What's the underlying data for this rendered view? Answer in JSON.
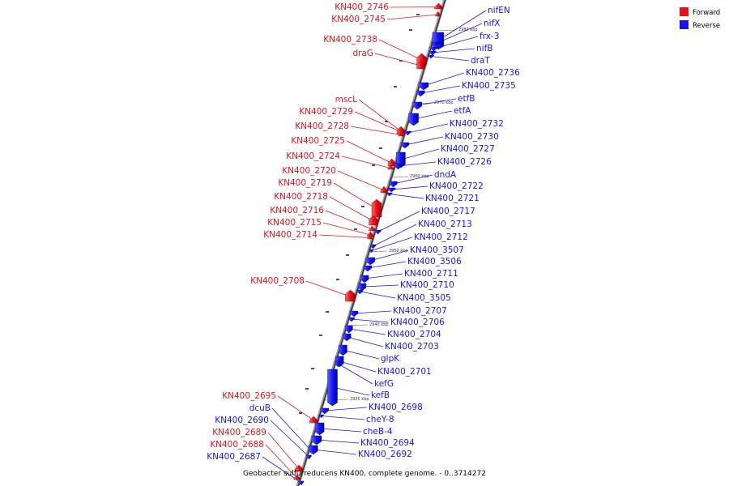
{
  "caption": "Geobacter sulfurreducens KN400, complete genome. - 0..3714272",
  "legend": {
    "forward": {
      "label": "Forward",
      "color": "#e8121c"
    },
    "reverse": {
      "label": "Reverse",
      "color": "#1515f0"
    }
  },
  "ticks": [
    "2980 kbp",
    "2970 kbp",
    "2960 kbp",
    "2950 kbp",
    "2940 kbp",
    "2930 kbp"
  ],
  "genes": [
    {
      "name": "KN400_2746",
      "strand": "forward"
    },
    {
      "name": "KN400_2745",
      "strand": "forward"
    },
    {
      "name": "KN400_2738",
      "strand": "forward"
    },
    {
      "name": "draG",
      "strand": "forward"
    },
    {
      "name": "mscL",
      "strand": "forward"
    },
    {
      "name": "KN400_2729",
      "strand": "forward"
    },
    {
      "name": "KN400_2728",
      "strand": "forward"
    },
    {
      "name": "KN400_2725",
      "strand": "forward"
    },
    {
      "name": "KN400_2724",
      "strand": "forward"
    },
    {
      "name": "KN400_2720",
      "strand": "forward"
    },
    {
      "name": "KN400_2719",
      "strand": "forward"
    },
    {
      "name": "KN400_2718",
      "strand": "forward"
    },
    {
      "name": "KN400_2716",
      "strand": "forward"
    },
    {
      "name": "KN400_2715",
      "strand": "forward"
    },
    {
      "name": "KN400_2714",
      "strand": "forward"
    },
    {
      "name": "KN400_2708",
      "strand": "forward"
    },
    {
      "name": "KN400_2695",
      "strand": "forward"
    },
    {
      "name": "dcuB",
      "strand": "reverse"
    },
    {
      "name": "KN400_2690",
      "strand": "reverse"
    },
    {
      "name": "KN400_2689",
      "strand": "forward"
    },
    {
      "name": "KN400_2688",
      "strand": "forward"
    },
    {
      "name": "KN400_2687",
      "strand": "reverse"
    },
    {
      "name": "nifEN",
      "strand": "reverse"
    },
    {
      "name": "nifX",
      "strand": "reverse"
    },
    {
      "name": "frx-3",
      "strand": "reverse"
    },
    {
      "name": "nifB",
      "strand": "reverse"
    },
    {
      "name": "draT",
      "strand": "reverse"
    },
    {
      "name": "KN400_2736",
      "strand": "reverse"
    },
    {
      "name": "KN400_2735",
      "strand": "reverse"
    },
    {
      "name": "etfB",
      "strand": "reverse"
    },
    {
      "name": "etfA",
      "strand": "reverse"
    },
    {
      "name": "KN400_2732",
      "strand": "reverse"
    },
    {
      "name": "KN400_2730",
      "strand": "reverse"
    },
    {
      "name": "KN400_2727",
      "strand": "reverse"
    },
    {
      "name": "KN400_2726",
      "strand": "reverse"
    },
    {
      "name": "dndA",
      "strand": "reverse"
    },
    {
      "name": "KN400_2722",
      "strand": "reverse"
    },
    {
      "name": "KN400_2721",
      "strand": "reverse"
    },
    {
      "name": "KN400_2717",
      "strand": "reverse"
    },
    {
      "name": "KN400_2713",
      "strand": "reverse"
    },
    {
      "name": "KN400_2712",
      "strand": "reverse"
    },
    {
      "name": "KN400_3507",
      "strand": "reverse"
    },
    {
      "name": "KN400_3506",
      "strand": "reverse"
    },
    {
      "name": "KN400_2711",
      "strand": "reverse"
    },
    {
      "name": "KN400_2710",
      "strand": "reverse"
    },
    {
      "name": "KN400_3505",
      "strand": "reverse"
    },
    {
      "name": "KN400_2707",
      "strand": "reverse"
    },
    {
      "name": "KN400_2706",
      "strand": "reverse"
    },
    {
      "name": "KN400_2704",
      "strand": "reverse"
    },
    {
      "name": "KN400_2703",
      "strand": "reverse"
    },
    {
      "name": "glpK",
      "strand": "reverse"
    },
    {
      "name": "KN400_2701",
      "strand": "reverse"
    },
    {
      "name": "kefG",
      "strand": "reverse"
    },
    {
      "name": "kefB",
      "strand": "reverse"
    },
    {
      "name": "KN400_2698",
      "strand": "reverse"
    },
    {
      "name": "cheY-8",
      "strand": "reverse"
    },
    {
      "name": "cheB-4",
      "strand": "reverse"
    },
    {
      "name": "KN400_2694",
      "strand": "reverse"
    },
    {
      "name": "KN400_2692",
      "strand": "reverse"
    }
  ]
}
